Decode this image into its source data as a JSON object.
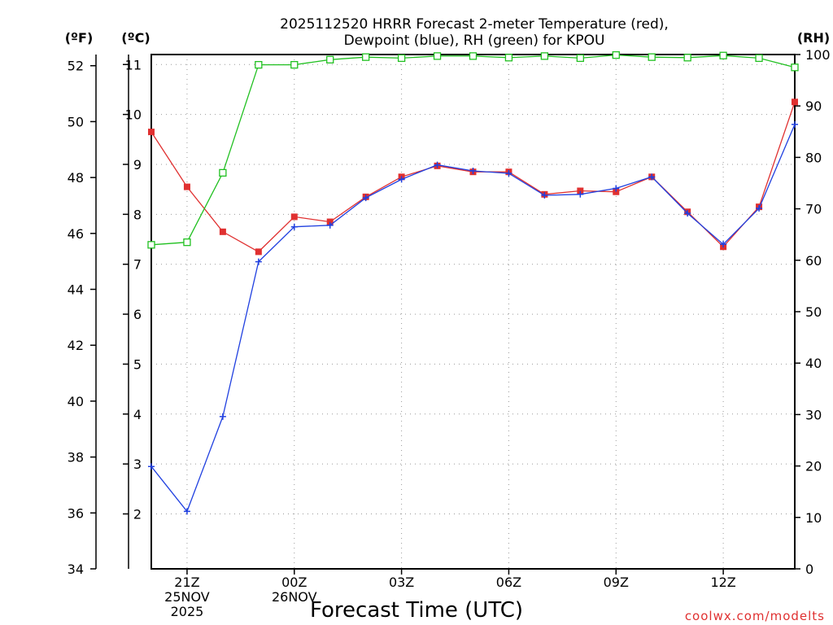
{
  "chart_data": {
    "type": "line",
    "title_lines": [
      "2025112520 HRRR Forecast 2-meter Temperature (red),",
      "Dewpoint (blue), RH (green) for KPOU"
    ],
    "xlabel": "Forecast Time (UTC)",
    "credit": "coolwx.com/modelts",
    "units": {
      "fahrenheit": "(ºF)",
      "celsius": "(ºC)",
      "rh": "(RH)"
    },
    "x_hours": [
      20,
      21,
      22,
      23,
      24,
      25,
      26,
      27,
      28,
      29,
      30,
      31,
      32,
      33,
      34,
      35,
      36,
      37,
      38
    ],
    "xlim": [
      20,
      38
    ],
    "x_ticks": [
      {
        "x": 21,
        "lines": [
          "21Z",
          "25NOV",
          "2025"
        ]
      },
      {
        "x": 24,
        "lines": [
          "00Z",
          "26NOV"
        ]
      },
      {
        "x": 27,
        "lines": [
          "03Z"
        ]
      },
      {
        "x": 30,
        "lines": [
          "06Z"
        ]
      },
      {
        "x": 33,
        "lines": [
          "09Z"
        ]
      },
      {
        "x": 36,
        "lines": [
          "12Z"
        ]
      }
    ],
    "celsius_axis": {
      "ylim": [
        0.9,
        11.2
      ],
      "ticks": [
        "2",
        "3",
        "4",
        "5",
        "6",
        "7",
        "8",
        "9",
        "10",
        "11"
      ]
    },
    "fahrenheit_axis": {
      "ylim": [
        34,
        52.4
      ],
      "ticks": [
        "34",
        "36",
        "38",
        "40",
        "42",
        "44",
        "46",
        "48",
        "50",
        "52"
      ]
    },
    "rh_axis": {
      "ylim": [
        0,
        100
      ],
      "ticks": [
        "0",
        "10",
        "20",
        "30",
        "40",
        "50",
        "60",
        "70",
        "80",
        "90",
        "100"
      ]
    },
    "series": [
      {
        "name": "Temperature",
        "unit": "C",
        "color": "#e03030",
        "marker": "filled-square",
        "values": [
          9.65,
          8.55,
          7.65,
          7.25,
          7.95,
          7.85,
          8.35,
          8.75,
          8.97,
          8.85,
          8.85,
          8.4,
          8.47,
          8.45,
          8.75,
          8.05,
          7.35,
          8.15,
          10.25
        ]
      },
      {
        "name": "Dewpoint",
        "unit": "C",
        "color": "#2040e0",
        "marker": "plus",
        "values": [
          2.95,
          2.05,
          3.95,
          7.05,
          7.75,
          7.78,
          8.33,
          8.7,
          8.99,
          8.87,
          8.82,
          8.38,
          8.4,
          8.52,
          8.75,
          8.02,
          7.4,
          8.12,
          9.8
        ]
      },
      {
        "name": "RH",
        "unit": "%",
        "color": "#20c020",
        "marker": "open-square",
        "values": [
          63,
          63.5,
          77,
          98,
          98,
          99,
          99.5,
          99.3,
          99.7,
          99.7,
          99.4,
          99.7,
          99.3,
          99.9,
          99.5,
          99.4,
          99.8,
          99.3,
          97.5
        ]
      }
    ]
  }
}
